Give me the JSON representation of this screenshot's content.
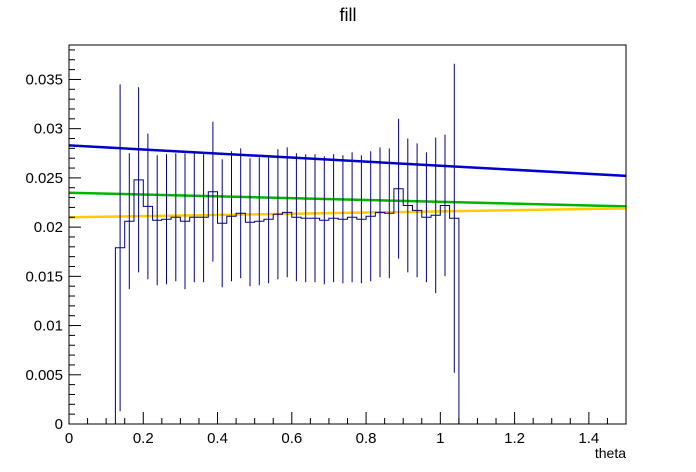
{
  "chart_data": {
    "type": "line",
    "title": "fill",
    "xlabel": "theta",
    "ylabel": "",
    "xlim": [
      0,
      1.5
    ],
    "ylim": [
      0,
      0.0385
    ],
    "grid": false,
    "x_ticks": [
      0,
      0.2,
      0.4,
      0.6,
      0.8,
      1,
      1.2,
      1.4
    ],
    "x_tick_labels": [
      "0",
      "0.2",
      "0.4",
      "0.6",
      "0.8",
      "1",
      "1.2",
      "1.4"
    ],
    "y_ticks": [
      0,
      0.005,
      0.01,
      0.015,
      0.02,
      0.025,
      0.03,
      0.035
    ],
    "y_tick_labels": [
      "0",
      "0.005",
      "0.01",
      "0.015",
      "0.02",
      "0.025",
      "0.03",
      "0.035"
    ],
    "histogram": {
      "color": "#000080",
      "bin_width": 0.025,
      "bins": [
        {
          "x": 0.1375,
          "value": 0.0179,
          "error": 0.0166
        },
        {
          "x": 0.1625,
          "value": 0.0206,
          "error": 0.0069
        },
        {
          "x": 0.1875,
          "value": 0.0248,
          "error": 0.0094
        },
        {
          "x": 0.2125,
          "value": 0.0221,
          "error": 0.0074
        },
        {
          "x": 0.2375,
          "value": 0.0207,
          "error": 0.0066
        },
        {
          "x": 0.2625,
          "value": 0.0208,
          "error": 0.0066
        },
        {
          "x": 0.2875,
          "value": 0.021,
          "error": 0.0065
        },
        {
          "x": 0.3125,
          "value": 0.0206,
          "error": 0.0069
        },
        {
          "x": 0.3375,
          "value": 0.021,
          "error": 0.0066
        },
        {
          "x": 0.3625,
          "value": 0.021,
          "error": 0.0066
        },
        {
          "x": 0.3875,
          "value": 0.0236,
          "error": 0.0071
        },
        {
          "x": 0.4125,
          "value": 0.0204,
          "error": 0.0065
        },
        {
          "x": 0.4375,
          "value": 0.0211,
          "error": 0.0066
        },
        {
          "x": 0.4625,
          "value": 0.0214,
          "error": 0.0066
        },
        {
          "x": 0.4875,
          "value": 0.0205,
          "error": 0.0065
        },
        {
          "x": 0.5125,
          "value": 0.0206,
          "error": 0.0065
        },
        {
          "x": 0.5375,
          "value": 0.0208,
          "error": 0.0065
        },
        {
          "x": 0.5625,
          "value": 0.0213,
          "error": 0.0066
        },
        {
          "x": 0.5875,
          "value": 0.0215,
          "error": 0.0066
        },
        {
          "x": 0.6125,
          "value": 0.021,
          "error": 0.0065
        },
        {
          "x": 0.6375,
          "value": 0.0209,
          "error": 0.0065
        },
        {
          "x": 0.6625,
          "value": 0.0209,
          "error": 0.0065
        },
        {
          "x": 0.6875,
          "value": 0.0207,
          "error": 0.0065
        },
        {
          "x": 0.7125,
          "value": 0.0209,
          "error": 0.0065
        },
        {
          "x": 0.7375,
          "value": 0.0208,
          "error": 0.0065
        },
        {
          "x": 0.7625,
          "value": 0.021,
          "error": 0.0066
        },
        {
          "x": 0.7875,
          "value": 0.0208,
          "error": 0.0065
        },
        {
          "x": 0.8125,
          "value": 0.0211,
          "error": 0.0066
        },
        {
          "x": 0.8375,
          "value": 0.0215,
          "error": 0.0066
        },
        {
          "x": 0.8625,
          "value": 0.0214,
          "error": 0.0066
        },
        {
          "x": 0.8875,
          "value": 0.0239,
          "error": 0.0071
        },
        {
          "x": 0.9125,
          "value": 0.0222,
          "error": 0.0068
        },
        {
          "x": 0.9375,
          "value": 0.0217,
          "error": 0.0068
        },
        {
          "x": 0.9625,
          "value": 0.021,
          "error": 0.0066
        },
        {
          "x": 0.9875,
          "value": 0.0212,
          "error": 0.0079
        },
        {
          "x": 1.0125,
          "value": 0.0222,
          "error": 0.0072
        },
        {
          "x": 1.0375,
          "value": 0.0209,
          "error": 0.0157
        }
      ]
    },
    "series": [
      {
        "color": "#0000cc",
        "x": [
          0,
          1.5
        ],
        "values": [
          0.0283,
          0.0252
        ]
      },
      {
        "color": "#00b400",
        "x": [
          0,
          1.5
        ],
        "values": [
          0.0235,
          0.0221
        ]
      },
      {
        "color": "#ffcc00",
        "x": [
          0,
          1.5
        ],
        "values": [
          0.021,
          0.0219
        ]
      }
    ]
  }
}
